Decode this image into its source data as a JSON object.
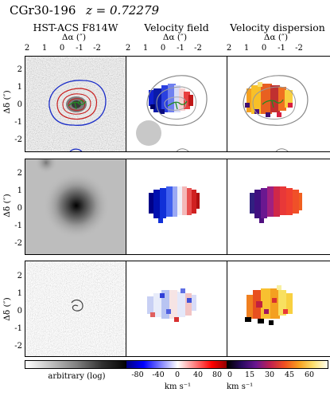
{
  "header": {
    "object_name": "CGr30-196",
    "redshift": "z = 0.72279"
  },
  "columns": [
    {
      "title": "HST-ACS F814W"
    },
    {
      "title": "Velocity field"
    },
    {
      "title": "Velocity dispersion"
    }
  ],
  "axes": {
    "x_label": "Δα (″)",
    "y_label": "Δδ (″)",
    "x_ticks": [
      "2",
      "1",
      "0",
      "-1",
      "-2"
    ],
    "y_ticks": [
      "2",
      "1",
      "0",
      "-1",
      "-2"
    ]
  },
  "colorbars": [
    {
      "label": "arbitrary (log)",
      "ticks": []
    },
    {
      "label": "km s⁻¹",
      "ticks": [
        "-80",
        "-40",
        "0",
        "40",
        "80"
      ]
    },
    {
      "label": "km s⁻¹",
      "ticks": [
        "0",
        "15",
        "30",
        "45",
        "60"
      ]
    }
  ],
  "colors": {
    "contour_blue": "#1a2cc8",
    "contour_red": "#c81e1e",
    "contour_green": "#228b22",
    "psf_gray": "#c8c8c8"
  }
}
